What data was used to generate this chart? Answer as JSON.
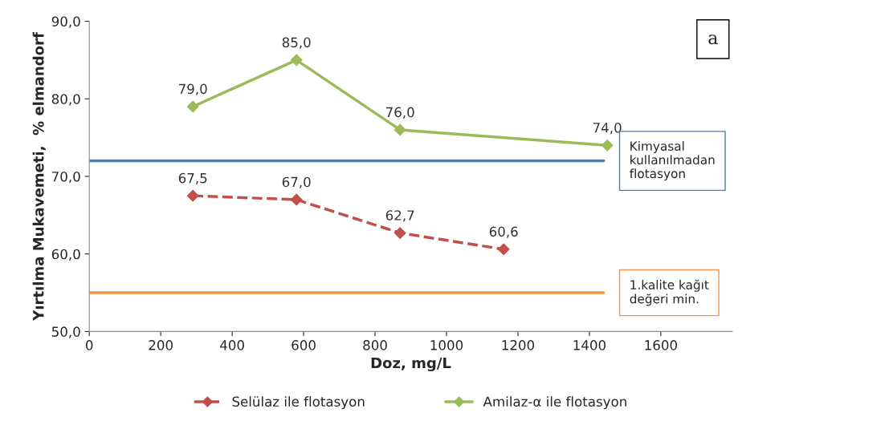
{
  "chart_data": {
    "type": "line",
    "xlabel": "Doz, mg/L",
    "ylabel": "Yırtılma Mukavemeti,  % elmandorf",
    "xlim": [
      0,
      1800
    ],
    "xticks": [
      0,
      200,
      400,
      600,
      800,
      1000,
      1200,
      1400,
      1600
    ],
    "ylim": [
      50,
      90
    ],
    "yticks": [
      {
        "value": 50,
        "label": "50,0"
      },
      {
        "value": 60,
        "label": "60,0"
      },
      {
        "value": 70,
        "label": "70,0"
      },
      {
        "value": 80,
        "label": "80,0"
      },
      {
        "value": 90,
        "label": "90,0"
      }
    ],
    "series": [
      {
        "name": "Selülaz ile flotasyon",
        "color": "#c0504d",
        "line_style": "dashed",
        "x": [
          290,
          580,
          870,
          1160
        ],
        "values": [
          67.5,
          67.0,
          62.7,
          60.6
        ],
        "value_labels": [
          "67,5",
          "67,0",
          "62,7",
          "60,6"
        ]
      },
      {
        "name": "Amilaz-α ile flotasyon",
        "color": "#9bbb59",
        "line_style": "solid",
        "x": [
          290,
          580,
          870,
          1450
        ],
        "values": [
          79.0,
          85.0,
          76.0,
          74.0
        ],
        "value_labels": [
          "79,0",
          "85,0",
          "76,0",
          "74,0"
        ]
      }
    ],
    "ref_lines": [
      {
        "axis": "y",
        "value": 72,
        "label": "Kimyasal\nkullanılmadan\nflotasyon",
        "color": "#4a7ebb"
      },
      {
        "axis": "y",
        "value": 55,
        "label": "1.kalite kağıt\ndeğeri min.",
        "color": "#f79646"
      }
    ],
    "annotations": [
      "a"
    ],
    "marker": "diamond",
    "grid": false,
    "legend": "bottom"
  }
}
